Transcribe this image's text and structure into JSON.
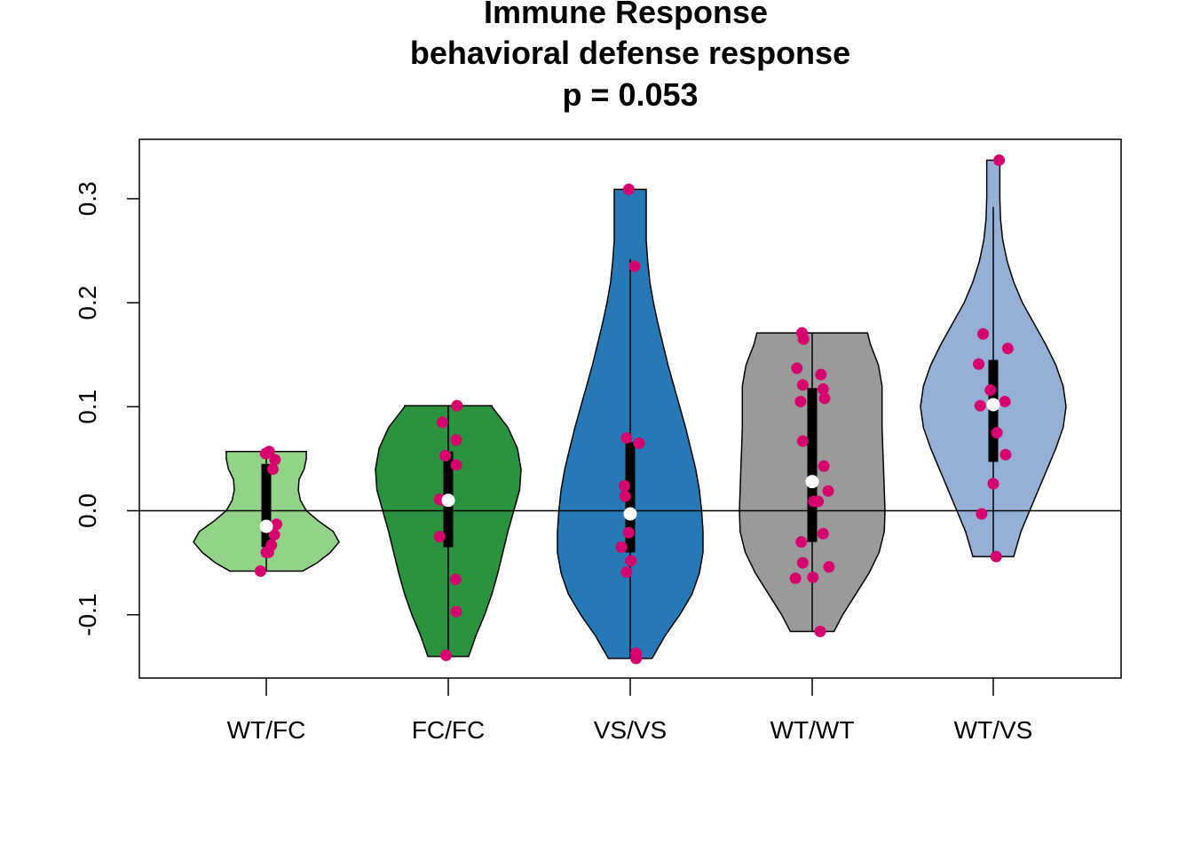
{
  "title": {
    "line1": "Immune Response",
    "line2": "behavioral defense response",
    "line3": "p = 0.053"
  },
  "chart_data": {
    "type": "violin",
    "title": "Immune Response behavioral defense response p = 0.053",
    "xlabel": "",
    "ylabel": "",
    "ylim": [
      -0.16,
      0.36
    ],
    "yticks": [
      -0.1,
      0.0,
      0.1,
      0.2,
      0.3
    ],
    "ytick_labels": [
      "-0.1",
      "0.0",
      "0.1",
      "0.2",
      "0.3"
    ],
    "reference_line": 0.0,
    "grid": false,
    "point_color": "#d6006e",
    "categories": [
      "WT/FC",
      "FC/FC",
      "VS/VS",
      "WT/WT",
      "WT/VS"
    ],
    "groups": [
      {
        "name": "WT/FC",
        "color": "#92d389",
        "min": -0.058,
        "max": 0.057,
        "q1": -0.035,
        "median": -0.015,
        "q3": 0.045,
        "whisker_low": -0.058,
        "whisker_high": 0.057,
        "violin_profile": [
          [
            -0.058,
            0.5
          ],
          [
            -0.05,
            0.7
          ],
          [
            -0.04,
            0.88
          ],
          [
            -0.03,
            1.0
          ],
          [
            -0.02,
            0.92
          ],
          [
            -0.01,
            0.72
          ],
          [
            0.0,
            0.55
          ],
          [
            0.01,
            0.47
          ],
          [
            0.02,
            0.44
          ],
          [
            0.03,
            0.45
          ],
          [
            0.04,
            0.52
          ],
          [
            0.05,
            0.55
          ],
          [
            0.057,
            0.55
          ]
        ],
        "points": [
          [
            -0.01,
            0.055
          ],
          [
            0.04,
            0.057
          ],
          [
            0.12,
            0.049
          ],
          [
            0.09,
            0.04
          ],
          [
            0.14,
            -0.013
          ],
          [
            0.11,
            -0.023
          ],
          [
            0.07,
            -0.033
          ],
          [
            0.03,
            -0.04
          ],
          [
            0.0,
            -0.04
          ],
          [
            -0.08,
            -0.058
          ]
        ]
      },
      {
        "name": "FC/FC",
        "color": "#2b9240",
        "min": -0.14,
        "max": 0.101,
        "q1": -0.035,
        "median": 0.01,
        "q3": 0.057,
        "whisker_low": -0.14,
        "whisker_high": 0.101,
        "violin_profile": [
          [
            -0.14,
            0.28
          ],
          [
            -0.12,
            0.38
          ],
          [
            -0.1,
            0.5
          ],
          [
            -0.08,
            0.6
          ],
          [
            -0.06,
            0.68
          ],
          [
            -0.04,
            0.75
          ],
          [
            -0.02,
            0.82
          ],
          [
            0.0,
            0.9
          ],
          [
            0.02,
            0.98
          ],
          [
            0.04,
            1.0
          ],
          [
            0.06,
            0.95
          ],
          [
            0.08,
            0.82
          ],
          [
            0.1,
            0.6
          ],
          [
            0.101,
            0.6
          ]
        ],
        "points": [
          [
            0.12,
            0.101
          ],
          [
            -0.08,
            0.085
          ],
          [
            0.11,
            0.068
          ],
          [
            -0.04,
            0.053
          ],
          [
            0.11,
            0.044
          ],
          [
            -0.12,
            0.011
          ],
          [
            -0.06,
            0.01
          ],
          [
            0.0,
            0.01
          ],
          [
            -0.12,
            -0.025
          ],
          [
            0.1,
            -0.066
          ],
          [
            0.11,
            -0.097
          ],
          [
            -0.03,
            -0.139
          ]
        ]
      },
      {
        "name": "VS/VS",
        "color": "#2679b5",
        "min": -0.142,
        "max": 0.309,
        "q1": -0.04,
        "median": -0.003,
        "q3": 0.066,
        "whisker_low": -0.142,
        "whisker_high": 0.242,
        "violin_profile": [
          [
            -0.142,
            0.3
          ],
          [
            -0.12,
            0.48
          ],
          [
            -0.1,
            0.68
          ],
          [
            -0.08,
            0.85
          ],
          [
            -0.06,
            0.95
          ],
          [
            -0.04,
            1.0
          ],
          [
            -0.02,
            1.0
          ],
          [
            0.0,
            0.98
          ],
          [
            0.02,
            0.95
          ],
          [
            0.04,
            0.9
          ],
          [
            0.06,
            0.83
          ],
          [
            0.08,
            0.76
          ],
          [
            0.1,
            0.68
          ],
          [
            0.12,
            0.6
          ],
          [
            0.14,
            0.52
          ],
          [
            0.16,
            0.45
          ],
          [
            0.18,
            0.38
          ],
          [
            0.2,
            0.32
          ],
          [
            0.22,
            0.27
          ],
          [
            0.24,
            0.24
          ],
          [
            0.26,
            0.22
          ],
          [
            0.28,
            0.22
          ],
          [
            0.3,
            0.22
          ],
          [
            0.309,
            0.22
          ]
        ],
        "points": [
          [
            -0.02,
            0.309
          ],
          [
            0.06,
            0.235
          ],
          [
            -0.05,
            0.07
          ],
          [
            0.12,
            0.065
          ],
          [
            -0.08,
            0.024
          ],
          [
            -0.07,
            0.014
          ],
          [
            -0.02,
            -0.021
          ],
          [
            -0.12,
            -0.035
          ],
          [
            0.01,
            -0.048
          ],
          [
            -0.05,
            -0.059
          ],
          [
            0.08,
            -0.137
          ],
          [
            0.08,
            -0.142
          ]
        ]
      },
      {
        "name": "WT/WT",
        "color": "#9a9a9a",
        "min": -0.116,
        "max": 0.171,
        "q1": -0.03,
        "median": 0.028,
        "q3": 0.118,
        "whisker_low": -0.116,
        "whisker_high": 0.171,
        "violin_profile": [
          [
            -0.116,
            0.3
          ],
          [
            -0.1,
            0.42
          ],
          [
            -0.08,
            0.6
          ],
          [
            -0.06,
            0.78
          ],
          [
            -0.04,
            0.92
          ],
          [
            -0.02,
            0.99
          ],
          [
            0.0,
            1.0
          ],
          [
            0.02,
            0.99
          ],
          [
            0.04,
            0.98
          ],
          [
            0.06,
            0.97
          ],
          [
            0.08,
            0.96
          ],
          [
            0.1,
            0.96
          ],
          [
            0.12,
            0.96
          ],
          [
            0.14,
            0.91
          ],
          [
            0.16,
            0.8
          ],
          [
            0.171,
            0.76
          ]
        ],
        "points": [
          [
            -0.14,
            0.171
          ],
          [
            -0.12,
            0.165
          ],
          [
            -0.21,
            0.137
          ],
          [
            0.12,
            0.131
          ],
          [
            -0.13,
            0.121
          ],
          [
            0.15,
            0.117
          ],
          [
            -0.16,
            0.105
          ],
          [
            0.17,
            0.108
          ],
          [
            -0.13,
            0.067
          ],
          [
            0.16,
            0.043
          ],
          [
            0.22,
            0.019
          ],
          [
            0.0,
            0.028
          ],
          [
            0.02,
            0.009
          ],
          [
            0.08,
            0.009
          ],
          [
            0.15,
            -0.022
          ],
          [
            -0.15,
            -0.03
          ],
          [
            -0.13,
            -0.05
          ],
          [
            0.23,
            -0.054
          ],
          [
            -0.23,
            -0.065
          ],
          [
            0.01,
            -0.064
          ],
          [
            0.11,
            -0.116
          ]
        ]
      },
      {
        "name": "WT/VS",
        "color": "#95afd5",
        "min": -0.044,
        "max": 0.337,
        "q1": 0.047,
        "median": 0.102,
        "q3": 0.145,
        "whisker_low": -0.044,
        "whisker_high": 0.292,
        "violin_profile": [
          [
            -0.044,
            0.28
          ],
          [
            -0.02,
            0.38
          ],
          [
            0.0,
            0.5
          ],
          [
            0.02,
            0.62
          ],
          [
            0.04,
            0.74
          ],
          [
            0.06,
            0.86
          ],
          [
            0.08,
            0.96
          ],
          [
            0.1,
            1.0
          ],
          [
            0.12,
            0.96
          ],
          [
            0.14,
            0.86
          ],
          [
            0.16,
            0.72
          ],
          [
            0.18,
            0.56
          ],
          [
            0.2,
            0.4
          ],
          [
            0.22,
            0.28
          ],
          [
            0.24,
            0.19
          ],
          [
            0.26,
            0.13
          ],
          [
            0.28,
            0.1
          ],
          [
            0.3,
            0.09
          ],
          [
            0.32,
            0.09
          ],
          [
            0.337,
            0.09
          ]
        ],
        "points": [
          [
            0.08,
            0.337
          ],
          [
            -0.14,
            0.17
          ],
          [
            0.2,
            0.156
          ],
          [
            -0.2,
            0.141
          ],
          [
            -0.04,
            0.116
          ],
          [
            -0.18,
            0.101
          ],
          [
            0.16,
            0.105
          ],
          [
            0.05,
            0.075
          ],
          [
            0.17,
            0.054
          ],
          [
            0.0,
            0.026
          ],
          [
            -0.16,
            -0.003
          ],
          [
            0.04,
            -0.044
          ]
        ]
      }
    ]
  }
}
